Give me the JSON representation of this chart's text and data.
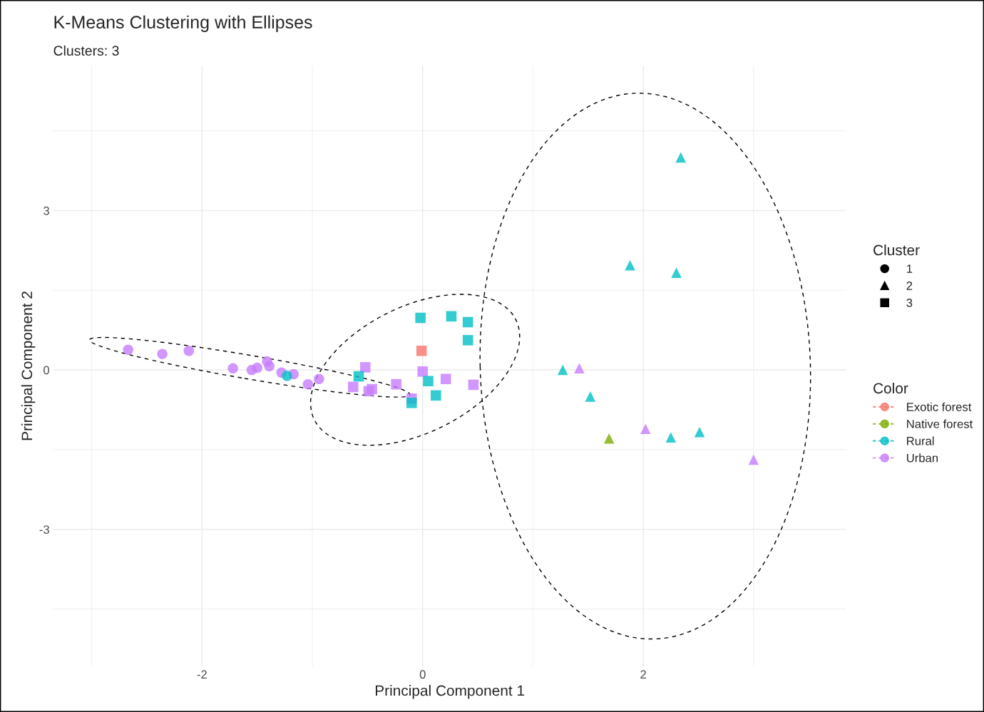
{
  "chart_data": {
    "type": "scatter",
    "title": "K-Means Clustering with Ellipses",
    "subtitle": "Clusters: 3",
    "xlabel": "Principal Component 1",
    "ylabel": "Principal Component 2",
    "legend_title": [
      "Cluster",
      "Color"
    ],
    "legend": "right",
    "grid": true,
    "xlim": [
      -3.35,
      3.84
    ],
    "ylim": [
      -5.58,
      5.73
    ],
    "xticks": [
      -2,
      0,
      2
    ],
    "yticks": [
      -3,
      0,
      3
    ],
    "series": [
      {
        "name": "1",
        "color": "#000000",
        "marker": "circle"
      },
      {
        "name": "2",
        "color": "#000000",
        "marker": "triangle"
      },
      {
        "name": "3",
        "color": "#000000",
        "marker": "square"
      },
      {
        "name": "Exotic forest",
        "color": "#F8766D",
        "marker": "square",
        "x": [
          -0.01
        ],
        "values": [
          0.36
        ]
      },
      {
        "name": "Native forest",
        "color": "#7CAE00",
        "marker": "triangle",
        "x": [
          1.69
        ],
        "values": [
          -1.29
        ]
      },
      {
        "name": "Rural",
        "color": "#00BFC4",
        "marker": "circle",
        "x": [
          -1.23
        ],
        "values": [
          -0.11
        ]
      },
      {
        "name": "Urban",
        "color": "#C77CFF",
        "marker": "circle",
        "x": [
          -2.67,
          -2.36,
          -2.12,
          -1.72,
          -1.55,
          -1.5,
          -1.41,
          -1.39,
          -1.28,
          -1.17,
          -1.04,
          -0.94
        ],
        "values": [
          0.38,
          0.3,
          0.36,
          0.03,
          0.0,
          0.04,
          0.16,
          0.07,
          -0.05,
          -0.08,
          -0.27,
          -0.17
        ]
      },
      {
        "color": "#00BFC4",
        "marker": "square",
        "x": [
          -0.02,
          0.26,
          0.41,
          0.41,
          -0.58,
          0.05,
          0.12,
          -0.1
        ],
        "values": [
          0.98,
          1.01,
          0.9,
          0.56,
          -0.12,
          -0.21,
          -0.48,
          -0.62
        ]
      },
      {
        "color": "#C77CFF",
        "marker": "square",
        "x": [
          -0.52,
          0.0,
          0.21,
          0.46,
          -0.63,
          -0.49,
          -0.46,
          -0.24,
          -0.1
        ],
        "values": [
          0.05,
          -0.03,
          -0.17,
          -0.28,
          -0.32,
          -0.4,
          -0.36,
          -0.27,
          -0.54
        ]
      },
      {
        "color": "#00BFC4",
        "marker": "triangle",
        "x": [
          2.34,
          1.88,
          2.3,
          1.27,
          1.52,
          2.25,
          2.51
        ],
        "values": [
          4.0,
          1.97,
          1.83,
          0.0,
          -0.5,
          -1.27,
          -1.17
        ]
      },
      {
        "color": "#C77CFF",
        "marker": "triangle",
        "x": [
          1.42,
          2.02,
          3.0
        ],
        "values": [
          0.03,
          -1.11,
          -1.69
        ]
      }
    ]
  }
}
